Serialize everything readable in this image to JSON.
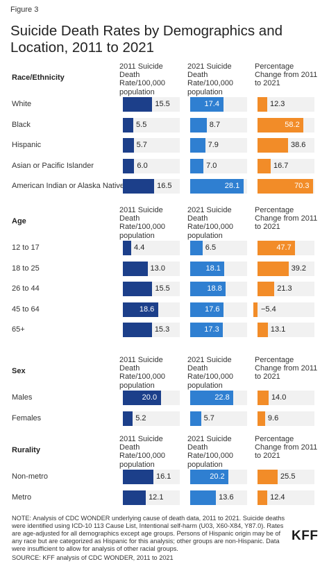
{
  "figure_label": "Figure 3",
  "title": "Suicide Death Rates by Demographics and Location, 2011 to 2021",
  "column_headers": [
    "2011 Suicide Death Rate/100,000 population",
    "2021 Suicide Death Rate/100,000 population",
    "Percentage Change from 2011 to 2021"
  ],
  "colors": {
    "col2011": "#1c3f8a",
    "col2021": "#2f7fd1",
    "change": "#f28c28",
    "track": "#f1f1f1"
  },
  "chart_data": {
    "type": "bar",
    "title": "Suicide Death Rates by Demographics and Location, 2011 to 2021",
    "series": [
      {
        "name": "2011 Suicide Death Rate/100,000 population"
      },
      {
        "name": "2021 Suicide Death Rate/100,000 population"
      },
      {
        "name": "Percentage Change from 2011 to 2021"
      }
    ],
    "scales": {
      "rate_max": 30,
      "change_max": 72
    },
    "sections": [
      {
        "label": "Race/Ethnicity",
        "rows": [
          {
            "label": "White",
            "v2011": 15.5,
            "v2021": 17.4,
            "change": 12.3,
            "change_text": "12.3"
          },
          {
            "label": "Black",
            "v2011": 5.5,
            "v2021": 8.7,
            "change": 58.2,
            "change_text": "58.2"
          },
          {
            "label": "Hispanic",
            "v2011": 5.7,
            "v2021": 7.9,
            "change": 38.6,
            "change_text": "38.6"
          },
          {
            "label": "Asian or Pacific Islander",
            "v2011": 6.0,
            "v2021": 7.0,
            "change": 16.7,
            "change_text": "16.7"
          },
          {
            "label": "American Indian or Alaska Native",
            "v2011": 16.5,
            "v2021": 28.1,
            "change": 70.3,
            "change_text": "70.3"
          }
        ]
      },
      {
        "label": "Age",
        "rows": [
          {
            "label": "12 to 17",
            "v2011": 4.4,
            "v2021": 6.5,
            "change": 47.7,
            "change_text": "47.7"
          },
          {
            "label": "18 to 25",
            "v2011": 13.0,
            "v2021": 18.1,
            "change": 39.2,
            "change_text": "39.2"
          },
          {
            "label": "26 to 44",
            "v2011": 15.5,
            "v2021": 18.8,
            "change": 21.3,
            "change_text": "21.3"
          },
          {
            "label": "45 to 64",
            "v2011": 18.6,
            "v2021": 17.6,
            "change": -5.4,
            "change_text": "−5.4"
          },
          {
            "label": "65+",
            "v2011": 15.3,
            "v2021": 17.3,
            "change": 13.1,
            "change_text": "13.1"
          }
        ]
      },
      {
        "label": "Sex",
        "rows": [
          {
            "label": "Males",
            "v2011": 20.0,
            "v2021": 22.8,
            "change": 14.0,
            "change_text": "14.0"
          },
          {
            "label": "Females",
            "v2011": 5.2,
            "v2021": 5.7,
            "change": 9.6,
            "change_text": "9.6"
          }
        ]
      },
      {
        "label": "Rurality",
        "rows": [
          {
            "label": "Non-metro",
            "v2011": 16.1,
            "v2021": 20.2,
            "change": 25.5,
            "change_text": "25.5"
          },
          {
            "label": "Metro",
            "v2011": 12.1,
            "v2021": 13.6,
            "change": 12.4,
            "change_text": "12.4"
          }
        ]
      }
    ]
  },
  "note": "NOTE: Analysis of CDC WONDER underlying cause of death data, 2011 to 2021. Suicide deaths were identified using ICD-10 113 Cause List, Intentional self-harm (U03, X60-X84, Y87.0). Rates are age-adjusted for all demographics except age groups. Persons of Hispanic origin may be of any race but are categorized as Hispanic for this analysis; other groups are non-Hispanic. Data were insufficient to allow for analysis of other racial groups.",
  "source": "SOURCE: KFF analysis of CDC WONDER, 2011 to 2021",
  "logo_text": "KFF"
}
